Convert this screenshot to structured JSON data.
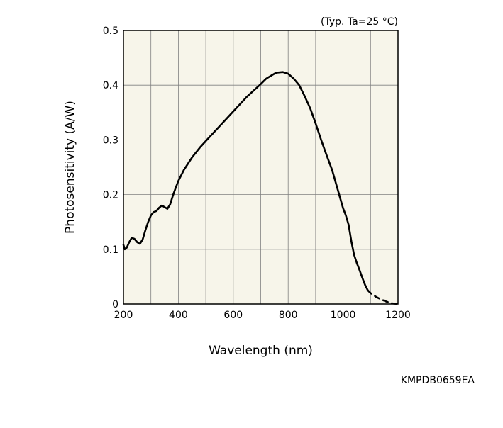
{
  "colors": {
    "plot_background": "#f7f5ea",
    "grid": "#808080",
    "curve": "#000000"
  },
  "chart_data": {
    "type": "line",
    "title": "",
    "condition_note": "(Typ. Ta=25 °C)",
    "xlabel": "Wavelength (nm)",
    "ylabel": "Photosensitivity (A/W)",
    "xlim": [
      200,
      1200
    ],
    "ylim": [
      0,
      0.5
    ],
    "x_ticks": [
      200,
      400,
      600,
      800,
      1000,
      1200
    ],
    "x_tick_labels": [
      "200",
      "400",
      "600",
      "800",
      "1000",
      "1200"
    ],
    "y_ticks": [
      0,
      0.1,
      0.2,
      0.3,
      0.4,
      0.5
    ],
    "y_tick_labels": [
      "0",
      "0.1",
      "0.2",
      "0.3",
      "0.4",
      "0.5"
    ],
    "grid": true,
    "series": [
      {
        "style": "solid",
        "x": [
          200,
          205,
          212,
          220,
          230,
          240,
          250,
          260,
          270,
          280,
          290,
          300,
          310,
          320,
          330,
          340,
          350,
          360,
          370,
          380,
          390,
          400,
          420,
          450,
          480,
          500,
          550,
          600,
          650,
          700,
          720,
          740,
          750,
          760,
          780,
          800,
          820,
          840,
          860,
          880,
          900,
          920,
          940,
          960,
          980,
          1000,
          1010,
          1020,
          1030,
          1040,
          1050,
          1060,
          1070,
          1080,
          1090
        ],
        "y": [
          0.108,
          0.1,
          0.103,
          0.112,
          0.121,
          0.119,
          0.113,
          0.11,
          0.118,
          0.135,
          0.15,
          0.162,
          0.168,
          0.17,
          0.176,
          0.18,
          0.177,
          0.174,
          0.182,
          0.198,
          0.212,
          0.225,
          0.245,
          0.268,
          0.287,
          0.298,
          0.325,
          0.352,
          0.379,
          0.402,
          0.412,
          0.418,
          0.421,
          0.423,
          0.424,
          0.421,
          0.412,
          0.4,
          0.38,
          0.358,
          0.33,
          0.3,
          0.272,
          0.245,
          0.21,
          0.175,
          0.162,
          0.145,
          0.115,
          0.09,
          0.075,
          0.062,
          0.048,
          0.035,
          0.025
        ]
      },
      {
        "style": "dashed",
        "x": [
          1090,
          1100,
          1120,
          1140,
          1160,
          1180,
          1200
        ],
        "y": [
          0.025,
          0.02,
          0.013,
          0.008,
          0.004,
          0.001,
          0.0
        ]
      }
    ]
  },
  "figure_code": "KMPDB0659EA"
}
